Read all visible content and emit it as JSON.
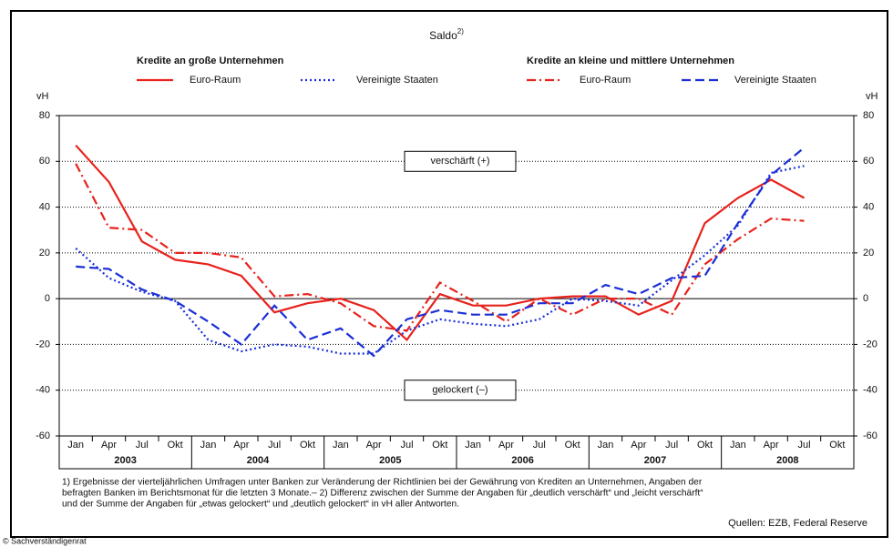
{
  "chart_data": {
    "type": "line",
    "title": "Saldo",
    "title_note": "2)",
    "groups": [
      "Kredite an große Unternehmen",
      "Kredite an kleine und mittlere Unternehmen"
    ],
    "categories": [
      "Jan",
      "Apr",
      "Jul",
      "Okt",
      "Jan",
      "Apr",
      "Jul",
      "Okt",
      "Jan",
      "Apr",
      "Jul",
      "Okt",
      "Jan",
      "Apr",
      "Jul",
      "Okt",
      "Jan",
      "Apr",
      "Jul",
      "Okt",
      "Jan",
      "Apr",
      "Jul",
      "Okt"
    ],
    "years": [
      "2003",
      "2004",
      "2005",
      "2006",
      "2007",
      "2008"
    ],
    "y_unit": "vH",
    "ylim": [
      -60,
      80
    ],
    "yticks": [
      -60,
      -40,
      -20,
      0,
      20,
      40,
      60,
      80
    ],
    "grid": true,
    "series": [
      {
        "name": "Euro-Raum",
        "group": 0,
        "color": "#e8221c",
        "dash": "solid",
        "values": [
          67,
          51,
          25,
          17,
          15,
          10,
          -6,
          -2,
          0,
          -5,
          -18,
          2,
          -3,
          -3,
          0,
          1,
          1,
          -7,
          -1,
          33,
          44,
          52,
          44,
          null
        ]
      },
      {
        "name": "Vereinigte Staaten",
        "group": 0,
        "color": "#1a2fd6",
        "dash": "dotted",
        "values": [
          22,
          9,
          3,
          -1,
          -18,
          -23,
          -20,
          -21,
          -24,
          -24,
          -14,
          -9,
          -11,
          -12,
          -9,
          0,
          -1,
          -3,
          8,
          19,
          32,
          55,
          58,
          null
        ]
      },
      {
        "name": "Euro-Raum",
        "group": 1,
        "color": "#e8221c",
        "dash": "dashdot",
        "values": [
          59,
          31,
          30,
          20,
          20,
          18,
          1,
          2,
          -2,
          -12,
          -14,
          7,
          -1,
          -10,
          0,
          -7,
          0,
          0,
          -7,
          15,
          26,
          35,
          34,
          null
        ]
      },
      {
        "name": "Vereinigte Staaten",
        "group": 1,
        "color": "#1a2fd6",
        "dash": "dashed",
        "values": [
          14,
          13,
          4,
          -1,
          -10,
          -20,
          -3,
          -18,
          -13,
          -25,
          -9,
          -5,
          -7,
          -7,
          -2,
          -2,
          6,
          2,
          9,
          10,
          33,
          54,
          66,
          null
        ]
      }
    ],
    "annotations": [
      {
        "text": "verschärft (+)",
        "y": 60
      },
      {
        "text": "gelockert (–)",
        "y": -40
      }
    ],
    "footnotes": [
      "1) Ergebnisse der vierteljährlichen Umfragen unter Banken zur Veränderung der Richtlinien bei der Gewährung von Krediten an Unternehmen, Angaben der",
      "befragten Banken im Berichtsmonat für die letzten 3 Monate.– 2) Differenz zwischen der Summe der Angaben für „deutlich verschärft“ und „leicht verschärft“",
      "und der Summe der Angaben für „etwas gelockert“ und „deutlich gelockert“ in vH aller Antworten."
    ],
    "source": "Quellen: EZB, Federal Reserve",
    "copyright": "© Sachverständigenrat"
  }
}
